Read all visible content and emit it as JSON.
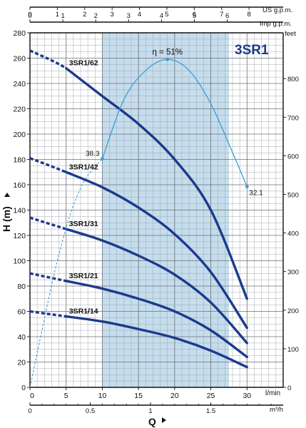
{
  "chart_data": {
    "type": "line",
    "title": "3SR1",
    "xlabel": "Q",
    "ylabel": "H (m)",
    "x_unit": "l/min",
    "x_range": [
      0,
      30
    ],
    "y_range": [
      0,
      280
    ],
    "x_ticks": [
      "0",
      "5",
      "10",
      "15",
      "20",
      "25",
      "30"
    ],
    "y_ticks": [
      "0",
      "20",
      "40",
      "60",
      "80",
      "100",
      "120",
      "140",
      "160",
      "180",
      "200",
      "220",
      "240",
      "260",
      "280"
    ],
    "secondary_axes": {
      "bottom": {
        "unit": "m³/h",
        "ticks": [
          "0",
          "0.5",
          "1",
          "1.5"
        ]
      },
      "top_us": {
        "unit": "US g.p.m.",
        "ticks": [
          "0",
          "1",
          "2",
          "3",
          "4",
          "5",
          "6",
          "7",
          "8"
        ]
      },
      "top_imp": {
        "unit": "Imp g.p.m.",
        "ticks": [
          "0",
          "1",
          "2",
          "3",
          "4",
          "5",
          "6"
        ]
      },
      "right": {
        "unit": "feet",
        "ticks": [
          "0",
          "100",
          "200",
          "300",
          "400",
          "500",
          "600",
          "700",
          "800"
        ]
      }
    },
    "recommended_range": {
      "x": [
        10,
        27.5
      ],
      "color": "#c5dded"
    },
    "grid": true,
    "series": [
      {
        "name": "3SR1/62",
        "points": [
          [
            5,
            252
          ],
          [
            10,
            230
          ],
          [
            15,
            208
          ],
          [
            20,
            180
          ],
          [
            25,
            140
          ],
          [
            30,
            70
          ]
        ],
        "dashed_from": [
          0,
          266
        ]
      },
      {
        "name": "3SR1/42",
        "points": [
          [
            5,
            170
          ],
          [
            10,
            158
          ],
          [
            15,
            142
          ],
          [
            20,
            121
          ],
          [
            25,
            91
          ],
          [
            30,
            47
          ]
        ],
        "dashed_from": [
          0,
          181
        ]
      },
      {
        "name": "3SR1/31",
        "points": [
          [
            5,
            125
          ],
          [
            10,
            116
          ],
          [
            15,
            104
          ],
          [
            20,
            89
          ],
          [
            25,
            67
          ],
          [
            30,
            35
          ]
        ],
        "dashed_from": [
          0,
          134
        ]
      },
      {
        "name": "3SR1/21",
        "points": [
          [
            5,
            84
          ],
          [
            10,
            78
          ],
          [
            15,
            70
          ],
          [
            20,
            60
          ],
          [
            25,
            45
          ],
          [
            30,
            24
          ]
        ],
        "dashed_from": [
          0,
          90
        ]
      },
      {
        "name": "3SR1/14",
        "points": [
          [
            5,
            56
          ],
          [
            10,
            52
          ],
          [
            15,
            46
          ],
          [
            20,
            39
          ],
          [
            25,
            29
          ],
          [
            30,
            16
          ]
        ],
        "dashed_from": [
          0,
          60
        ]
      }
    ],
    "efficiency": {
      "label": "η = 51%",
      "right_scale_max": 71.5,
      "points": [
        [
          0,
          0
        ],
        [
          4,
          30
        ],
        [
          7,
          45
        ],
        [
          10,
          51.6
        ],
        [
          13,
          65
        ],
        [
          16,
          71.5
        ],
        [
          19,
          74
        ],
        [
          22,
          71.5
        ],
        [
          25,
          64
        ],
        [
          28,
          53
        ],
        [
          30,
          45.3
        ]
      ],
      "dashed_until_x": 10,
      "annotations": [
        {
          "x": 10,
          "y": 191,
          "text": "38.3"
        },
        {
          "x": 19,
          "y": 255,
          "text": "η = 51%"
        },
        {
          "x": 30,
          "y": 160,
          "text": "32.1"
        }
      ]
    }
  },
  "colors": {
    "curve": "#1b3a8c",
    "efficiency": "#3b9ed6",
    "band": "#c5dded"
  }
}
